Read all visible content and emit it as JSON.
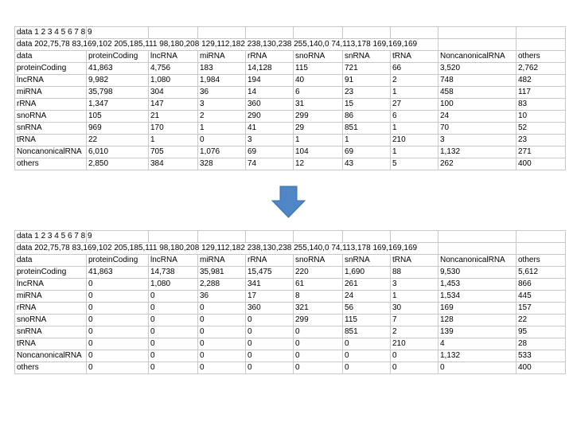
{
  "tables": [
    {
      "rows": [
        [
          "data 1 2 3 4 5 6 7 8 9"
        ],
        [
          "data 202,75,78 83,169,102 205,185,111 98,180,208 129,112,182 238,130,238 255,140,0 74,113,178 169,169,169"
        ],
        [
          "data",
          "proteinCoding",
          "lncRNA",
          "miRNA",
          "rRNA",
          "snoRNA",
          "snRNA",
          "tRNA",
          "NoncanonicalRNA",
          "others"
        ],
        [
          "proteinCoding",
          "41,863",
          "4,756",
          "183",
          "14,128",
          "115",
          "721",
          "66",
          "3,520",
          "2,762"
        ],
        [
          "lncRNA",
          "9,982",
          "1,080",
          "1,984",
          "194",
          "40",
          "91",
          "2",
          "748",
          "482"
        ],
        [
          "miRNA",
          "35,798",
          "304",
          "36",
          "14",
          "6",
          "23",
          "1",
          "458",
          "117"
        ],
        [
          "rRNA",
          "1,347",
          "147",
          "3",
          "360",
          "31",
          "15",
          "27",
          "100",
          "83"
        ],
        [
          "snoRNA",
          "105",
          "21",
          "2",
          "290",
          "299",
          "86",
          "6",
          "24",
          "10"
        ],
        [
          "snRNA",
          "969",
          "170",
          "1",
          "41",
          "29",
          "851",
          "1",
          "70",
          "52"
        ],
        [
          "tRNA",
          "22",
          "1",
          "0",
          "3",
          "1",
          "1",
          "210",
          "3",
          "23"
        ],
        [
          "NoncanonicalRNA",
          "6,010",
          "705",
          "1,076",
          "69",
          "104",
          "69",
          "1",
          "1,132",
          "271"
        ],
        [
          "others",
          "2,850",
          "384",
          "328",
          "74",
          "12",
          "43",
          "5",
          "262",
          "400"
        ]
      ]
    },
    {
      "rows": [
        [
          "data 1 2 3 4 5 6 7 8 9"
        ],
        [
          "data 202,75,78 83,169,102 205,185,111 98,180,208 129,112,182 238,130,238 255,140,0 74,113,178 169,169,169"
        ],
        [
          "data",
          "proteinCoding",
          "lncRNA",
          "miRNA",
          "rRNA",
          "snoRNA",
          "snRNA",
          "tRNA",
          "NoncanonicalRNA",
          "others"
        ],
        [
          "proteinCoding",
          "41,863",
          "14,738",
          "35,981",
          "15,475",
          "220",
          "1,690",
          "88",
          "9,530",
          "5,612"
        ],
        [
          "lncRNA",
          "0",
          "1,080",
          "2,288",
          "341",
          "61",
          "261",
          "3",
          "1,453",
          "866"
        ],
        [
          "miRNA",
          "0",
          "0",
          "36",
          "17",
          "8",
          "24",
          "1",
          "1,534",
          "445"
        ],
        [
          "rRNA",
          "0",
          "0",
          "0",
          "360",
          "321",
          "56",
          "30",
          "169",
          "157"
        ],
        [
          "snoRNA",
          "0",
          "0",
          "0",
          "0",
          "299",
          "115",
          "7",
          "128",
          "22"
        ],
        [
          "snRNA",
          "0",
          "0",
          "0",
          "0",
          "0",
          "851",
          "2",
          "139",
          "95"
        ],
        [
          "tRNA",
          "0",
          "0",
          "0",
          "0",
          "0",
          "0",
          "210",
          "4",
          "28"
        ],
        [
          "NoncanonicalRNA",
          "0",
          "0",
          "0",
          "0",
          "0",
          "0",
          "0",
          "1,132",
          "533"
        ],
        [
          "others",
          "0",
          "0",
          "0",
          "0",
          "0",
          "0",
          "0",
          "0",
          "400"
        ]
      ]
    }
  ]
}
